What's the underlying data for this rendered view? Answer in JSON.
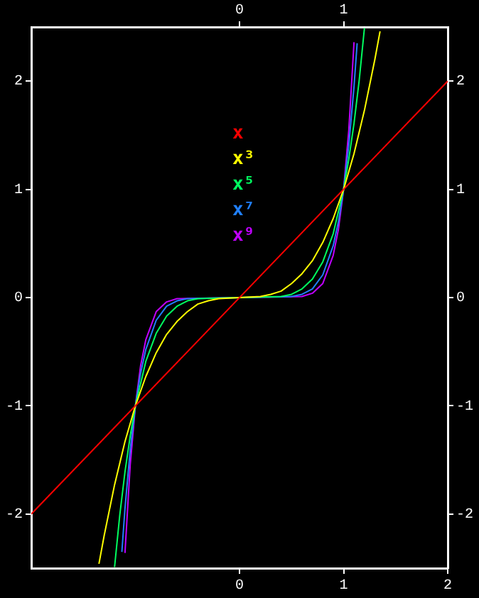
{
  "chart_data": {
    "type": "line",
    "xlim": [
      -2,
      2
    ],
    "xticks": [
      0,
      1,
      2
    ],
    "x2lim": [
      -2,
      2
    ],
    "x2ticks": [
      0,
      1
    ],
    "ylim": [
      -2.5,
      2.5
    ],
    "yticks": [
      -2,
      -1,
      0,
      1,
      2
    ],
    "y2lim": [
      -2.5,
      2.5
    ],
    "y2ticks": [
      -2,
      -1,
      0,
      1,
      2
    ],
    "grid": false,
    "legend": "top",
    "marker": "none",
    "line_style": "solid",
    "series": [
      {
        "name": "x",
        "color": "#ff0000",
        "x": [
          -2,
          2
        ],
        "values": [
          -2,
          2
        ]
      },
      {
        "name": "x³",
        "color": "#ffff00",
        "x": [
          -1.35,
          -1.3,
          -1.2,
          -1.1,
          -1,
          -0.9,
          -0.8,
          -0.7,
          -0.6,
          -0.5,
          -0.4,
          -0.3,
          -0.2,
          0,
          0.2,
          0.3,
          0.4,
          0.5,
          0.6,
          0.7,
          0.8,
          0.9,
          1,
          1.1,
          1.2,
          1.3,
          1.35
        ],
        "values": [
          -2.46,
          -2.2,
          -1.73,
          -1.33,
          -1,
          -0.73,
          -0.51,
          -0.34,
          -0.22,
          -0.13,
          -0.06,
          -0.03,
          -0.01,
          0,
          0.01,
          0.03,
          0.06,
          0.13,
          0.22,
          0.34,
          0.51,
          0.73,
          1,
          1.33,
          1.73,
          2.2,
          2.46
        ]
      },
      {
        "name": "x⁵",
        "color": "#00ff60",
        "x": [
          -1.2,
          -1.15,
          -1.1,
          -1.05,
          -1,
          -0.9,
          -0.8,
          -0.7,
          -0.6,
          -0.5,
          -0.4,
          0,
          0.4,
          0.5,
          0.6,
          0.7,
          0.8,
          0.9,
          1,
          1.05,
          1.1,
          1.15,
          1.2
        ],
        "values": [
          -2.49,
          -2.01,
          -1.61,
          -1.28,
          -1,
          -0.59,
          -0.33,
          -0.17,
          -0.08,
          -0.03,
          -0.01,
          0,
          0.01,
          0.03,
          0.08,
          0.17,
          0.33,
          0.59,
          1,
          1.28,
          1.61,
          2.01,
          2.49
        ]
      },
      {
        "name": "x⁷",
        "color": "#2080ff",
        "x": [
          -1.13,
          -1.1,
          -1.05,
          -1,
          -0.95,
          -0.9,
          -0.8,
          -0.7,
          -0.6,
          -0.5,
          0,
          0.5,
          0.6,
          0.7,
          0.8,
          0.9,
          0.95,
          1,
          1.05,
          1.1,
          1.13
        ],
        "values": [
          -2.35,
          -1.95,
          -1.41,
          -1,
          -0.7,
          -0.48,
          -0.21,
          -0.08,
          -0.03,
          -0.01,
          0,
          0.01,
          0.03,
          0.08,
          0.21,
          0.48,
          0.7,
          1,
          1.41,
          1.95,
          2.35
        ]
      },
      {
        "name": "x⁹",
        "color": "#c000ff",
        "x": [
          -1.1,
          -1.05,
          -1,
          -0.95,
          -0.9,
          -0.8,
          -0.7,
          -0.6,
          0,
          0.6,
          0.7,
          0.8,
          0.9,
          0.95,
          1,
          1.05,
          1.1
        ],
        "values": [
          -2.36,
          -1.55,
          -1,
          -0.63,
          -0.39,
          -0.13,
          -0.04,
          -0.01,
          0,
          0.01,
          0.04,
          0.13,
          0.39,
          0.63,
          1,
          1.55,
          2.36
        ]
      }
    ]
  }
}
